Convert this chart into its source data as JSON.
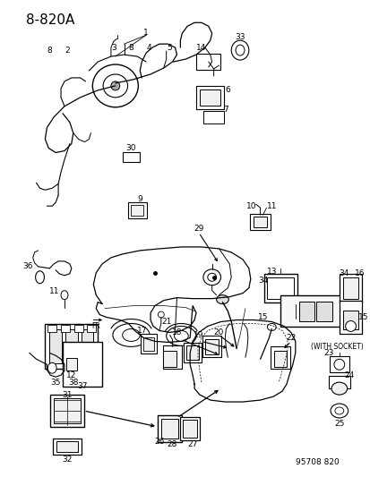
{
  "title": "8-820A",
  "footer": "95708 820",
  "bg_color": "#ffffff",
  "title_fontsize": 10,
  "footer_fontsize": 6.5,
  "fig_width": 4.14,
  "fig_height": 5.33,
  "dpi": 100
}
